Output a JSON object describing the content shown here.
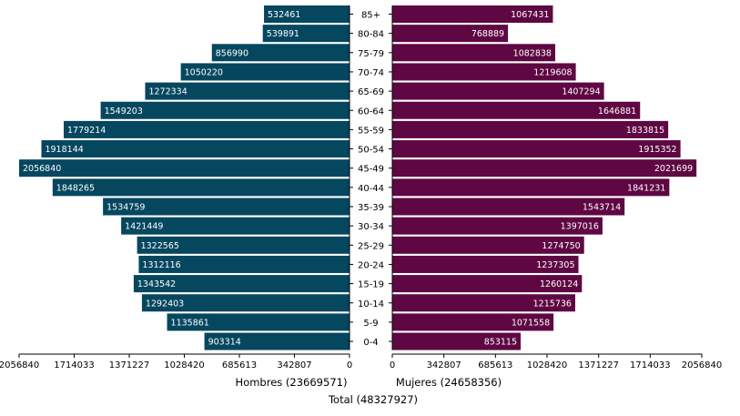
{
  "chart_data": {
    "type": "bar",
    "orientation": "horizontal-population-pyramid",
    "categories": [
      "85+",
      "80-84",
      "75-79",
      "70-74",
      "65-69",
      "60-64",
      "55-59",
      "50-54",
      "45-49",
      "40-44",
      "35-39",
      "30-34",
      "25-29",
      "20-24",
      "15-19",
      "10-14",
      "5-9",
      "0-4"
    ],
    "series": [
      {
        "name": "Hombres",
        "color": "#05475f",
        "values": [
          532461,
          539891,
          856990,
          1050220,
          1272334,
          1549203,
          1779214,
          1918144,
          2056840,
          1848265,
          1534759,
          1421449,
          1322565,
          1312116,
          1343542,
          1292403,
          1135861,
          903314
        ]
      },
      {
        "name": "Mujeres",
        "color": "#5e0742",
        "values": [
          1067431,
          768889,
          1082838,
          1219608,
          1407294,
          1646881,
          1833815,
          1915352,
          2021699,
          1841231,
          1543714,
          1397016,
          1274750,
          1237305,
          1260124,
          1215736,
          1071558,
          853115
        ]
      }
    ],
    "left_axis_ticks": [
      "2056840",
      "1714033",
      "1371227",
      "1028420",
      "685613",
      "342807",
      "0"
    ],
    "right_axis_ticks": [
      "0",
      "342807",
      "685613",
      "1028420",
      "1371227",
      "1714033",
      "2056840"
    ],
    "xlim": [
      0,
      2056840
    ],
    "left_axis_title": "Hombres (23669571)",
    "right_axis_title": "Mujeres (24658356)",
    "total_label": "Total (48327927)"
  }
}
